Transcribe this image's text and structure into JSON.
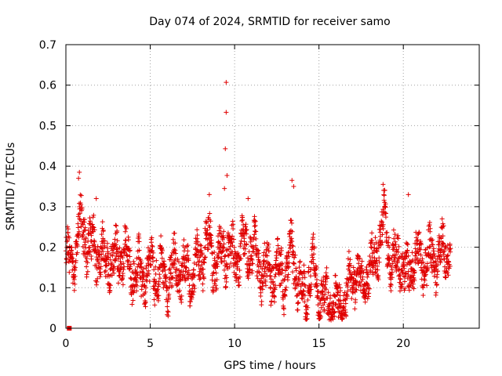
{
  "chart_data": {
    "type": "scatter",
    "title": "Day 074 of 2024, SRMTID for receiver samo",
    "xlabel": "GPS time / hours",
    "ylabel": "SRMTID / TECUs",
    "xlim": [
      0,
      24.5
    ],
    "ylim": [
      0,
      0.7
    ],
    "x_ticks": [
      0,
      5,
      10,
      15,
      20
    ],
    "y_ticks": [
      0,
      0.1,
      0.2,
      0.3,
      0.4,
      0.5,
      0.6,
      0.7
    ],
    "x_tick_labels": [
      "0",
      "5",
      "10",
      "15",
      "20"
    ],
    "y_tick_labels": [
      "0",
      "0.1",
      "0.2",
      "0.3",
      "0.4",
      "0.5",
      "0.6",
      "0.7"
    ],
    "marker": "plus",
    "color": "#e00000",
    "x_end": 22.8,
    "trend": [
      [
        0.0,
        0.17
      ],
      [
        0.5,
        0.16
      ],
      [
        0.8,
        0.26
      ],
      [
        1.0,
        0.24
      ],
      [
        1.5,
        0.2
      ],
      [
        2.0,
        0.18
      ],
      [
        2.5,
        0.16
      ],
      [
        3.0,
        0.17
      ],
      [
        3.5,
        0.18
      ],
      [
        4.0,
        0.14
      ],
      [
        4.5,
        0.13
      ],
      [
        5.0,
        0.14
      ],
      [
        5.5,
        0.14
      ],
      [
        6.0,
        0.12
      ],
      [
        6.5,
        0.15
      ],
      [
        7.0,
        0.14
      ],
      [
        7.5,
        0.13
      ],
      [
        8.0,
        0.17
      ],
      [
        8.4,
        0.22
      ],
      [
        8.8,
        0.16
      ],
      [
        9.2,
        0.19
      ],
      [
        9.5,
        0.2
      ],
      [
        10.0,
        0.17
      ],
      [
        10.5,
        0.2
      ],
      [
        11.0,
        0.2
      ],
      [
        11.5,
        0.16
      ],
      [
        12.0,
        0.13
      ],
      [
        12.5,
        0.14
      ],
      [
        13.0,
        0.13
      ],
      [
        13.4,
        0.2
      ],
      [
        13.8,
        0.1
      ],
      [
        14.2,
        0.08
      ],
      [
        14.6,
        0.16
      ],
      [
        15.0,
        0.08
      ],
      [
        15.5,
        0.07
      ],
      [
        16.0,
        0.05
      ],
      [
        16.5,
        0.06
      ],
      [
        17.0,
        0.14
      ],
      [
        17.5,
        0.11
      ],
      [
        18.0,
        0.13
      ],
      [
        18.5,
        0.2
      ],
      [
        18.9,
        0.27
      ],
      [
        19.3,
        0.15
      ],
      [
        19.8,
        0.18
      ],
      [
        20.2,
        0.12
      ],
      [
        20.6,
        0.18
      ],
      [
        21.0,
        0.17
      ],
      [
        21.5,
        0.17
      ],
      [
        22.0,
        0.18
      ],
      [
        22.5,
        0.2
      ],
      [
        22.8,
        0.19
      ]
    ],
    "spikes": [
      [
        9.5,
        0.607
      ],
      [
        9.5,
        0.533
      ],
      [
        9.45,
        0.443
      ],
      [
        9.55,
        0.377
      ],
      [
        9.4,
        0.345
      ],
      [
        0.8,
        0.385
      ],
      [
        0.75,
        0.37
      ],
      [
        13.4,
        0.365
      ],
      [
        13.5,
        0.35
      ],
      [
        18.8,
        0.355
      ],
      [
        18.9,
        0.34
      ],
      [
        20.3,
        0.33
      ],
      [
        8.5,
        0.33
      ],
      [
        1.8,
        0.32
      ],
      [
        10.8,
        0.32
      ]
    ],
    "special_points": [
      [
        0.2,
        0.0
      ]
    ]
  }
}
